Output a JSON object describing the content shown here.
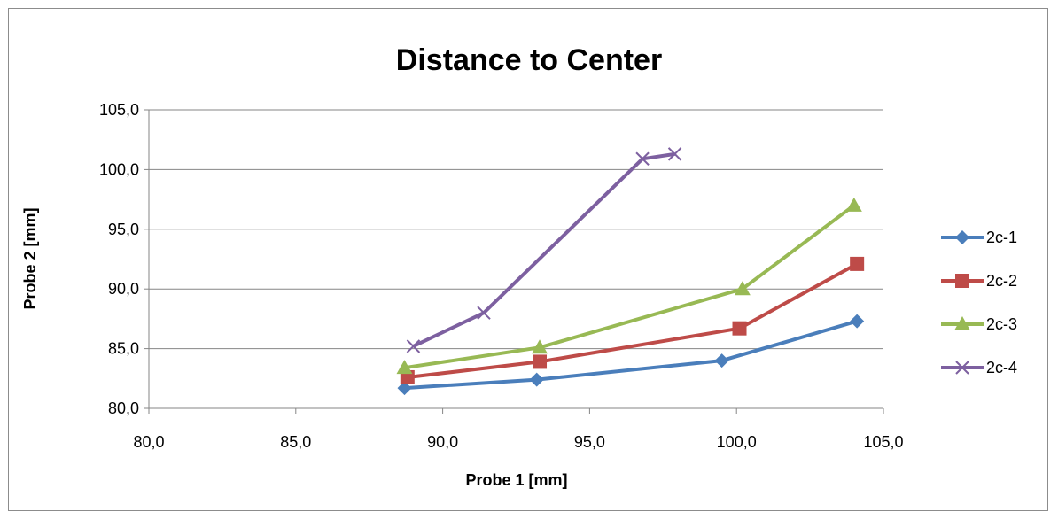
{
  "chart_data": {
    "type": "line",
    "title": "Distance to Center",
    "xlabel": "Probe 1 [mm]",
    "ylabel": "Probe 2 [mm]",
    "xlim": [
      80,
      105
    ],
    "ylim": [
      80,
      105
    ],
    "x_ticks": [
      "80,0",
      "85,0",
      "90,0",
      "95,0",
      "100,0",
      "105,0"
    ],
    "y_ticks": [
      "80,0",
      "85,0",
      "90,0",
      "95,0",
      "100,0",
      "105,0"
    ],
    "grid": "horizontal major gridlines",
    "legend_position": "right",
    "series": [
      {
        "name": "2c-1",
        "color": "#4a7ebb",
        "marker": "diamond",
        "points": [
          [
            88.7,
            81.7
          ],
          [
            93.2,
            82.4
          ],
          [
            99.5,
            84.0
          ],
          [
            104.1,
            87.3
          ]
        ]
      },
      {
        "name": "2c-2",
        "color": "#be4b48",
        "marker": "square",
        "points": [
          [
            88.8,
            82.6
          ],
          [
            93.3,
            83.9
          ],
          [
            100.1,
            86.7
          ],
          [
            104.1,
            92.1
          ]
        ]
      },
      {
        "name": "2c-3",
        "color": "#98b954",
        "marker": "triangle",
        "points": [
          [
            88.7,
            83.4
          ],
          [
            93.3,
            85.1
          ],
          [
            100.2,
            90.0
          ],
          [
            104.0,
            97.0
          ]
        ]
      },
      {
        "name": "2c-4",
        "color": "#7d60a0",
        "marker": "x",
        "points": [
          [
            89.0,
            85.2
          ],
          [
            91.4,
            88.0
          ],
          [
            96.8,
            100.9
          ],
          [
            97.9,
            101.3
          ]
        ]
      }
    ]
  }
}
